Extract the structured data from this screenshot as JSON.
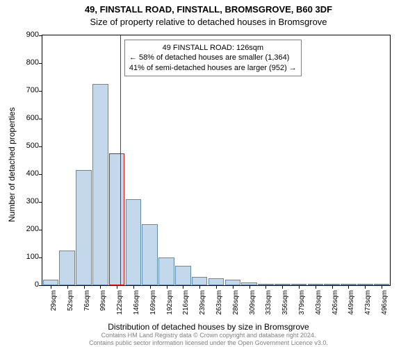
{
  "title_line1": "49, FINSTALL ROAD, FINSTALL, BROMSGROVE, B60 3DF",
  "title_line2": "Size of property relative to detached houses in Bromsgrove",
  "chart": {
    "type": "histogram",
    "y_label": "Number of detached properties",
    "x_label": "Distribution of detached houses by size in Bromsgrove",
    "y_ticks": [
      0,
      100,
      200,
      300,
      400,
      500,
      600,
      700,
      800,
      900
    ],
    "ylim": [
      0,
      900
    ],
    "x_categories": [
      "29sqm",
      "52sqm",
      "76sqm",
      "99sqm",
      "122sqm",
      "146sqm",
      "169sqm",
      "192sqm",
      "216sqm",
      "239sqm",
      "263sqm",
      "286sqm",
      "309sqm",
      "333sqm",
      "356sqm",
      "379sqm",
      "403sqm",
      "426sqm",
      "449sqm",
      "473sqm",
      "496sqm"
    ],
    "values": [
      20,
      125,
      415,
      725,
      475,
      310,
      220,
      100,
      70,
      30,
      25,
      20,
      10,
      5,
      5,
      5,
      2,
      0,
      2,
      5,
      2
    ],
    "bar_fill": "#c3d8ea",
    "bar_stroke": "#5a8bb9",
    "highlight_index": 4,
    "highlight_stroke": "#ff0000",
    "reference_line_x": 4.2,
    "reference_line_color": "#ff0000",
    "background_color": "#ffffff",
    "axis_color": "#000000"
  },
  "annotation": {
    "line1": "49 FINSTALL ROAD: 126sqm",
    "line2": "← 58% of detached houses are smaller (1,364)",
    "line3": "41% of semi-detached houses are larger (952) →"
  },
  "footer_line1": "Contains HM Land Registry data © Crown copyright and database right 2024.",
  "footer_line2": "Contains public sector information licensed under the Open Government Licence v3.0."
}
